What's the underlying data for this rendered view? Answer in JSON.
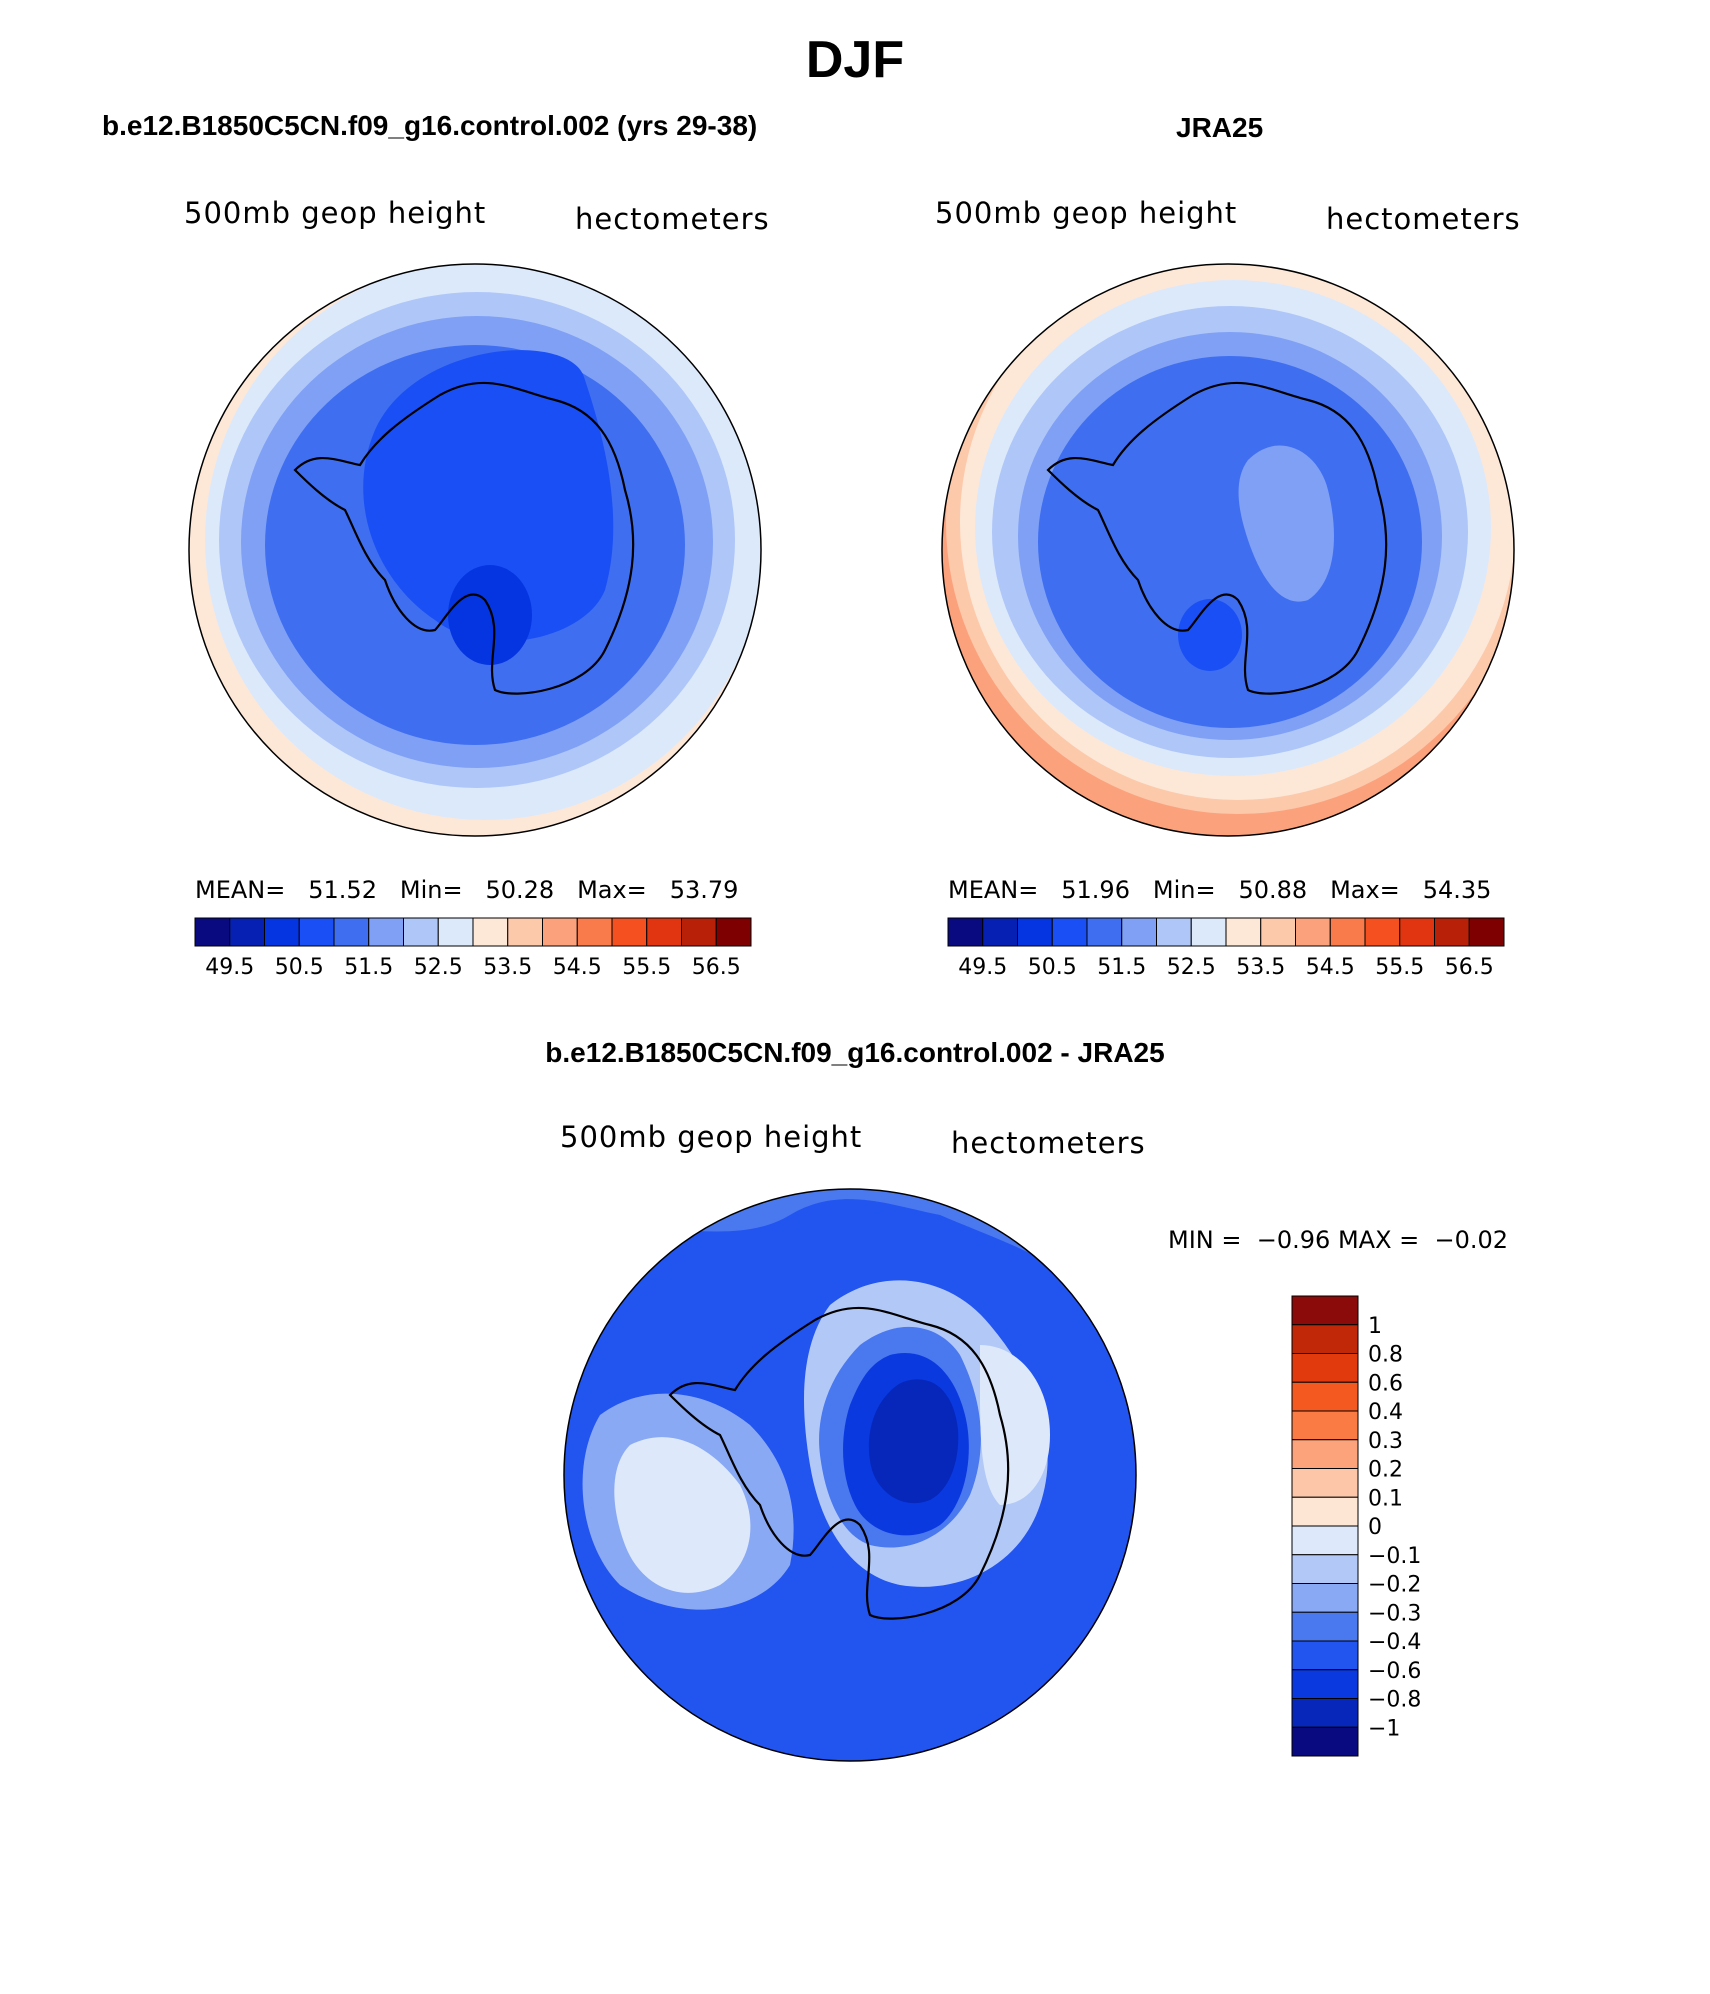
{
  "figure": {
    "title": "DJF"
  },
  "panels": [
    {
      "title": "b.e12.B1850C5CN.f09_g16.control.002 (yrs 29-38)",
      "variable": "500mb geop height",
      "units": "hectometers",
      "stats": {
        "mean_label": "MEAN=",
        "mean": "51.52",
        "min_label": "Min=",
        "min": "50.28",
        "max_label": "Max=",
        "max": "53.79"
      }
    },
    {
      "title": "JRA25",
      "variable": "500mb geop height",
      "units": "hectometers",
      "stats": {
        "mean_label": "MEAN=",
        "mean": "51.96",
        "min_label": "Min=",
        "min": "50.88",
        "max_label": "Max=",
        "max": "54.35"
      }
    },
    {
      "title": "b.e12.B1850C5CN.f09_g16.control.002 - JRA25",
      "variable": "500mb geop height",
      "units": "hectometers",
      "stats": {
        "min_label": "MIN =",
        "min": "−0.96",
        "max_label": "MAX =",
        "max": "−0.02"
      }
    }
  ],
  "colorbars": {
    "abs_colors": [
      "#0a0a80",
      "#0520b3",
      "#0535e0",
      "#1a4ff5",
      "#3f6ff0",
      "#7fa0f5",
      "#afc6f8",
      "#dce9fb",
      "#fde8d8",
      "#fdc9ab",
      "#fba27d",
      "#f97a4a",
      "#f5501f",
      "#e03510",
      "#b82008",
      "#7f0000"
    ],
    "abs_labels": [
      "49.5",
      "50.5",
      "51.5",
      "52.5",
      "53.5",
      "54.5",
      "55.5",
      "56.5"
    ],
    "diff_colors": [
      "#8b0a0a",
      "#c02808",
      "#e03a0d",
      "#f45a1f",
      "#fb7b45",
      "#fca37c",
      "#fdc6a9",
      "#fde6d4",
      "#dde9fb",
      "#b2c9f8",
      "#8aa9f4",
      "#4a78ef",
      "#2254f0",
      "#0a39e0",
      "#0627ba",
      "#0a0a80"
    ],
    "diff_labels": [
      "1",
      "0.8",
      "0.6",
      "0.4",
      "0.3",
      "0.2",
      "0.1",
      "0",
      "−0.1",
      "−0.2",
      "−0.3",
      "−0.4",
      "−0.6",
      "−0.8",
      "−1"
    ]
  }
}
